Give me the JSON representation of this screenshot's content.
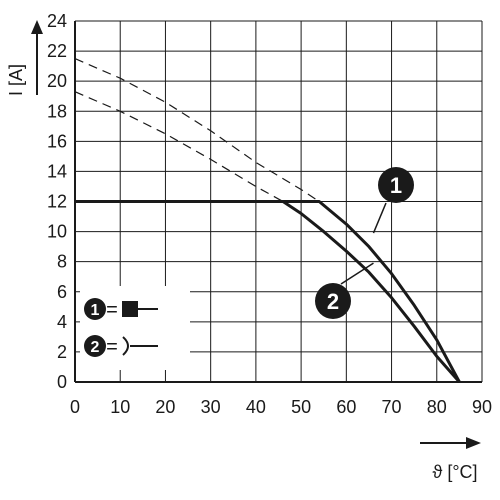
{
  "chart_data": {
    "type": "line",
    "xlabel": "ϑ [°C]",
    "ylabel": "I [A]",
    "xlim": [
      0,
      90
    ],
    "ylim": [
      0,
      24
    ],
    "x_ticks": [
      "0",
      "10",
      "20",
      "30",
      "40",
      "50",
      "60",
      "70",
      "80",
      "90"
    ],
    "y_ticks": [
      "0",
      "2",
      "4",
      "6",
      "8",
      "10",
      "12",
      "14",
      "16",
      "18",
      "20",
      "22",
      "24"
    ],
    "grid": true,
    "series": [
      {
        "id": "1",
        "style": "solid",
        "points": [
          [
            0,
            12
          ],
          [
            54,
            12
          ],
          [
            60,
            10.5
          ],
          [
            65,
            9.0
          ],
          [
            70,
            7.2
          ],
          [
            75,
            5.1
          ],
          [
            80,
            2.8
          ],
          [
            85,
            0
          ]
        ]
      },
      {
        "id": "2",
        "style": "solid",
        "points": [
          [
            0,
            12
          ],
          [
            46,
            12
          ],
          [
            50,
            11.2
          ],
          [
            55,
            10.0
          ],
          [
            60,
            8.7
          ],
          [
            65,
            7.3
          ],
          [
            70,
            5.6
          ],
          [
            75,
            3.7
          ],
          [
            80,
            1.7
          ],
          [
            85,
            0
          ]
        ]
      },
      {
        "id": "1",
        "style": "dashed",
        "points": [
          [
            0,
            21.5
          ],
          [
            10,
            20.2
          ],
          [
            20,
            18.6
          ],
          [
            30,
            16.7
          ],
          [
            40,
            14.6
          ],
          [
            50,
            12.8
          ],
          [
            54,
            12
          ]
        ]
      },
      {
        "id": "2",
        "style": "dashed",
        "points": [
          [
            0,
            19.3
          ],
          [
            10,
            18.0
          ],
          [
            20,
            16.5
          ],
          [
            30,
            14.8
          ],
          [
            40,
            13.0
          ],
          [
            46,
            12
          ]
        ]
      }
    ],
    "annotations": [
      {
        "label": "1",
        "pointer": [
          66,
          9.9
        ]
      },
      {
        "label": "2",
        "pointer": [
          66,
          7.9
        ]
      }
    ],
    "legend": {
      "placement": "bottom-left",
      "entries": [
        {
          "label": "1",
          "eq": "=",
          "icon": "filled-square-line-icon"
        },
        {
          "label": "2",
          "eq": "=",
          "icon": "open-bracket-line-icon"
        }
      ]
    }
  }
}
